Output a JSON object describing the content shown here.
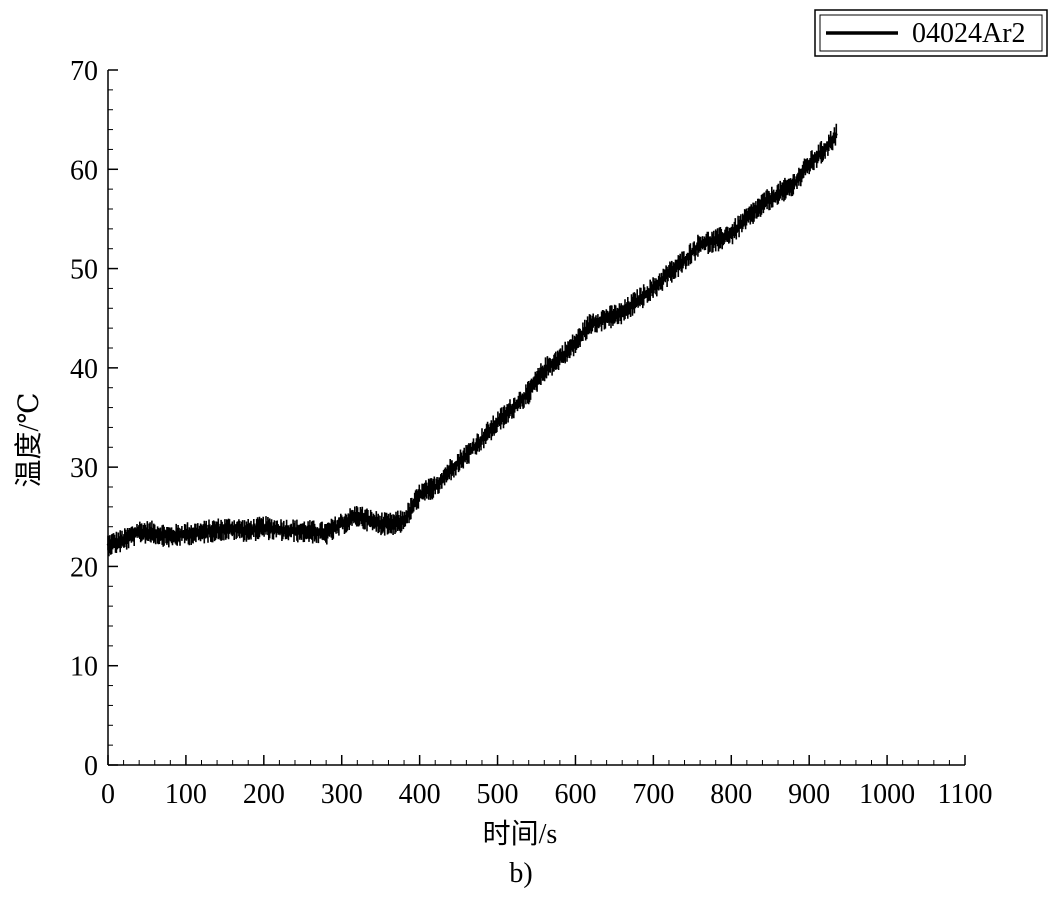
{
  "chart_data": {
    "type": "line",
    "xlabel": "时间/s",
    "ylabel": "温度/℃",
    "caption": "b)",
    "xlim": [
      0,
      1100
    ],
    "ylim": [
      0,
      70
    ],
    "xticks": [
      "0",
      "100",
      "200",
      "300",
      "400",
      "500",
      "600",
      "700",
      "800",
      "900",
      "1000",
      "1100"
    ],
    "yticks": [
      "0",
      "10",
      "20",
      "30",
      "40",
      "50",
      "60",
      "70"
    ],
    "grid": false,
    "legend_position": "top-right",
    "line_color": "#000000",
    "series": [
      {
        "name": "04024Ar2",
        "noise_band": 1.0,
        "x": [
          0,
          20,
          40,
          60,
          80,
          100,
          120,
          140,
          160,
          180,
          200,
          220,
          240,
          260,
          280,
          300,
          320,
          340,
          360,
          380,
          400,
          420,
          440,
          460,
          480,
          500,
          520,
          540,
          560,
          580,
          600,
          620,
          640,
          660,
          680,
          700,
          720,
          740,
          760,
          780,
          800,
          820,
          840,
          860,
          880,
          900,
          920,
          935
        ],
        "y": [
          22.2,
          22.6,
          23.5,
          23.4,
          23.0,
          23.3,
          23.4,
          23.7,
          23.8,
          23.6,
          23.9,
          23.7,
          23.6,
          23.5,
          23.3,
          24.3,
          25.1,
          24.5,
          24.2,
          24.6,
          27.2,
          28.0,
          29.8,
          31.2,
          32.8,
          34.5,
          36.0,
          37.5,
          39.8,
          41.0,
          42.5,
          44.5,
          45.0,
          45.5,
          46.8,
          48.0,
          49.5,
          50.8,
          52.5,
          52.8,
          53.5,
          55.0,
          56.5,
          57.5,
          58.5,
          60.5,
          62.0,
          63.5
        ]
      }
    ]
  }
}
